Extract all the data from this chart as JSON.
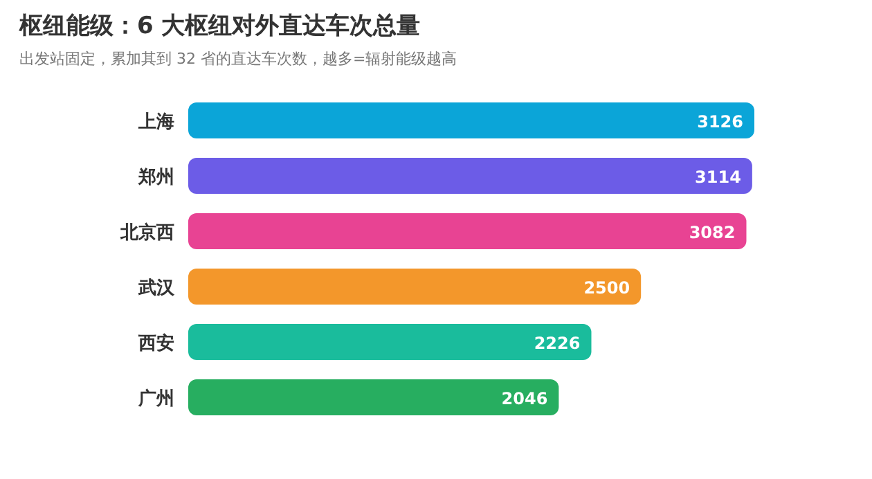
{
  "chart_data": {
    "type": "bar",
    "orientation": "horizontal",
    "title": "枢纽能级：6 大枢纽对外直达车次总量",
    "subtitle": "出发站固定，累加其到 32 省的直达车次数，越多=辐射能级越高",
    "categories": [
      "上海",
      "郑州",
      "北京西",
      "武汉",
      "西安",
      "广州"
    ],
    "values": [
      3126,
      3114,
      3082,
      2500,
      2226,
      2046
    ],
    "colors": [
      "#0ba5d8",
      "#6c5ce7",
      "#e84393",
      "#f3972b",
      "#1abc9c",
      "#27ae60"
    ],
    "data_labels": true
  }
}
